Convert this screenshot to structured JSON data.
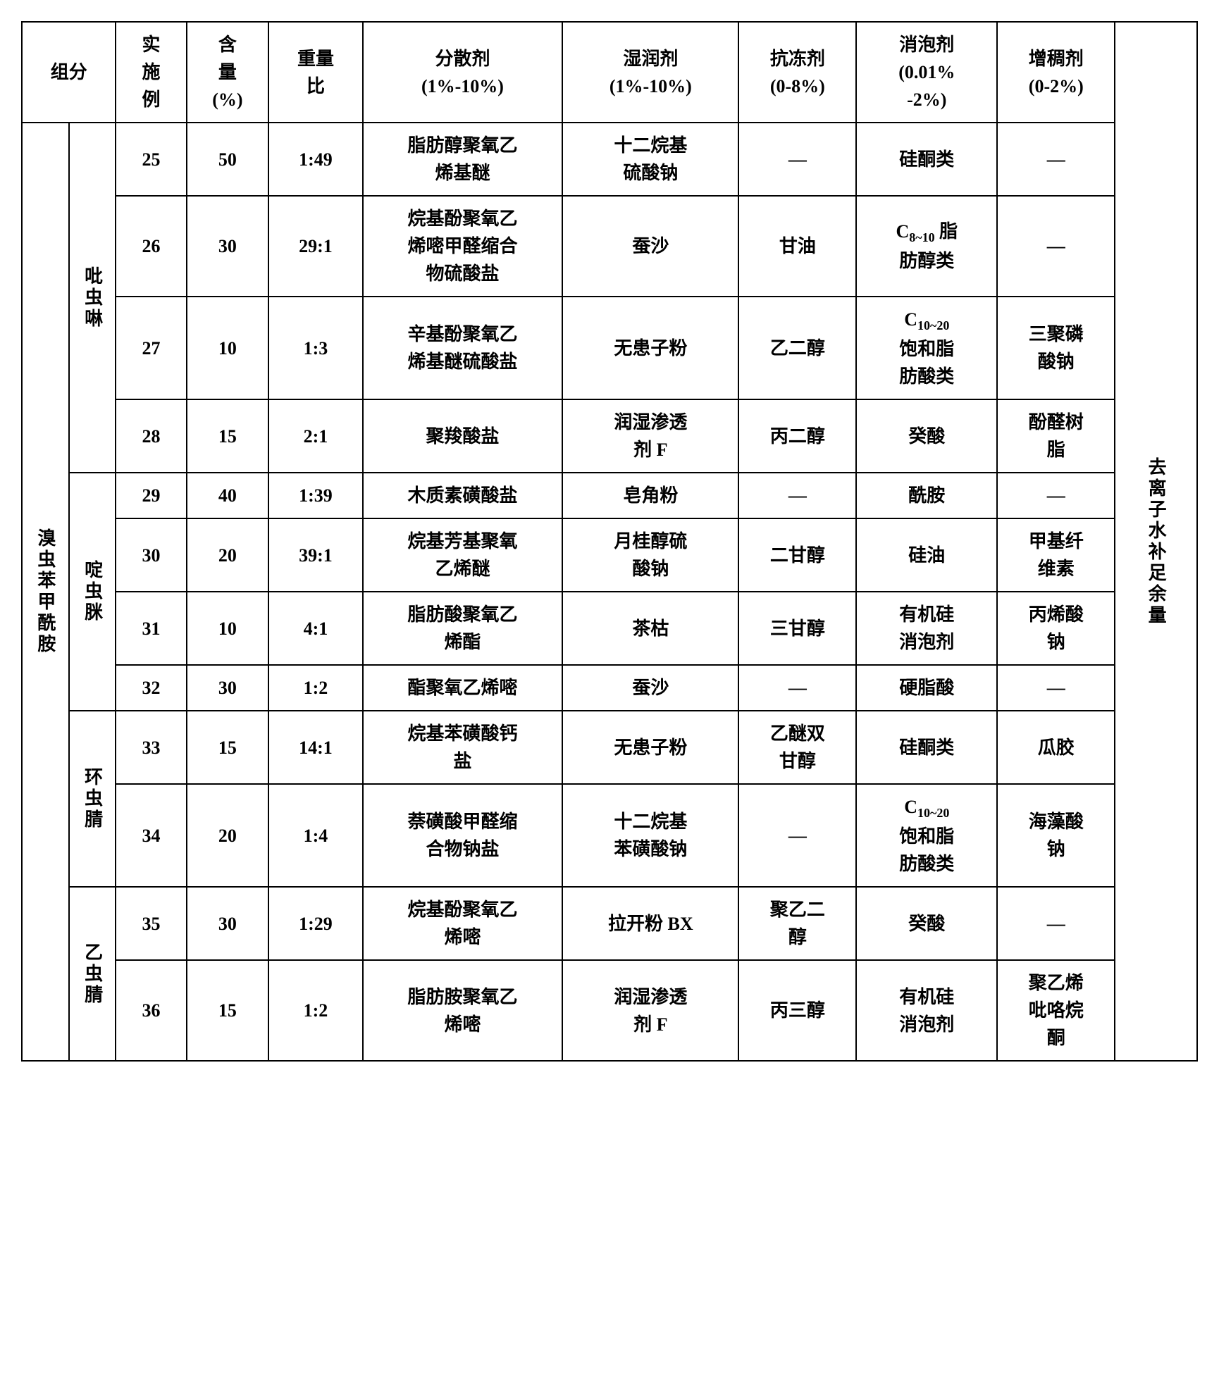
{
  "headers": {
    "component": "组分",
    "example": "实<br>施<br>例",
    "content": "含<br>量<br>(%)",
    "ratio": "重量<br>比",
    "dispersant": "分散剂<br>(1%-10%)",
    "wetting": "湿润剂<br>(1%-10%)",
    "antifreeze": "抗冻剂<br>(0-8%)",
    "defoamer": "消泡剂<br>(0.01%<br>-2%)",
    "thickener": "增稠剂<br>(0-2%)"
  },
  "left_main": "溴虫苯甲酰胺",
  "right_col": "去离子水补足余量",
  "groups": [
    {
      "label": "吡虫啉",
      "span": 4
    },
    {
      "label": "啶虫脒",
      "span": 4
    },
    {
      "label": "环虫腈",
      "span": 2
    },
    {
      "label": "乙虫腈",
      "span": 2
    }
  ],
  "rows": [
    {
      "ex": "25",
      "ct": "50",
      "ratio": "1:49",
      "disp": "脂肪醇聚氧乙<br>烯基醚",
      "wet": "十二烷基<br>硫酸钠",
      "af": "—",
      "df": "硅酮类",
      "th": "—"
    },
    {
      "ex": "26",
      "ct": "30",
      "ratio": "29:1",
      "disp": "烷基酚聚氧乙<br>烯嘧甲醛缩合<br>物硫酸盐",
      "wet": "蚕沙",
      "af": "甘油",
      "df": "C<span class='sub'>8~10</span> 脂<br>肪醇类",
      "th": "—"
    },
    {
      "ex": "27",
      "ct": "10",
      "ratio": "1:3",
      "disp": "辛基酚聚氧乙<br>烯基醚硫酸盐",
      "wet": "无患子粉",
      "af": "乙二醇",
      "df": "C<span class='sub'>10~20</span><br>饱和脂<br>肪酸类",
      "th": "三聚磷<br>酸钠"
    },
    {
      "ex": "28",
      "ct": "15",
      "ratio": "2:1",
      "disp": "聚羧酸盐",
      "wet": "润湿渗透<br>剂 F",
      "af": "丙二醇",
      "df": "癸酸",
      "th": "酚醛树<br>脂"
    },
    {
      "ex": "29",
      "ct": "40",
      "ratio": "1:39",
      "disp": "木质素磺酸盐",
      "wet": "皂角粉",
      "af": "—",
      "df": "酰胺",
      "th": "—"
    },
    {
      "ex": "30",
      "ct": "20",
      "ratio": "39:1",
      "disp": "烷基芳基聚氧<br>乙烯醚",
      "wet": "月桂醇硫<br>酸钠",
      "af": "二甘醇",
      "df": "硅油",
      "th": "甲基纤<br>维素"
    },
    {
      "ex": "31",
      "ct": "10",
      "ratio": "4:1",
      "disp": "脂肪酸聚氧乙<br>烯酯",
      "wet": "茶枯",
      "af": "三甘醇",
      "df": "有机硅<br>消泡剂",
      "th": "丙烯酸<br>钠"
    },
    {
      "ex": "32",
      "ct": "30",
      "ratio": "1:2",
      "disp": "酯聚氧乙烯嘧",
      "wet": "蚕沙",
      "af": "—",
      "df": "硬脂酸",
      "th": "—"
    },
    {
      "ex": "33",
      "ct": "15",
      "ratio": "14:1",
      "disp": "烷基苯磺酸钙<br>盐",
      "wet": "无患子粉",
      "af": "乙醚双<br>甘醇",
      "df": "硅酮类",
      "th": "瓜胶"
    },
    {
      "ex": "34",
      "ct": "20",
      "ratio": "1:4",
      "disp": "萘磺酸甲醛缩<br>合物钠盐",
      "wet": "十二烷基<br>苯磺酸钠",
      "af": "—",
      "df": "C<span class='sub'>10~20</span><br>饱和脂<br>肪酸类",
      "th": "海藻酸<br>钠"
    },
    {
      "ex": "35",
      "ct": "30",
      "ratio": "1:29",
      "disp": "烷基酚聚氧乙<br>烯嘧",
      "wet": "拉开粉 BX",
      "af": "聚乙二<br>醇",
      "df": "癸酸",
      "th": "—"
    },
    {
      "ex": "36",
      "ct": "15",
      "ratio": "1:2",
      "disp": "脂肪胺聚氧乙<br>烯嘧",
      "wet": "润湿渗透<br>剂 F",
      "af": "丙三醇",
      "df": "有机硅<br>消泡剂",
      "th": "聚乙烯<br>吡咯烷<br>酮"
    }
  ]
}
